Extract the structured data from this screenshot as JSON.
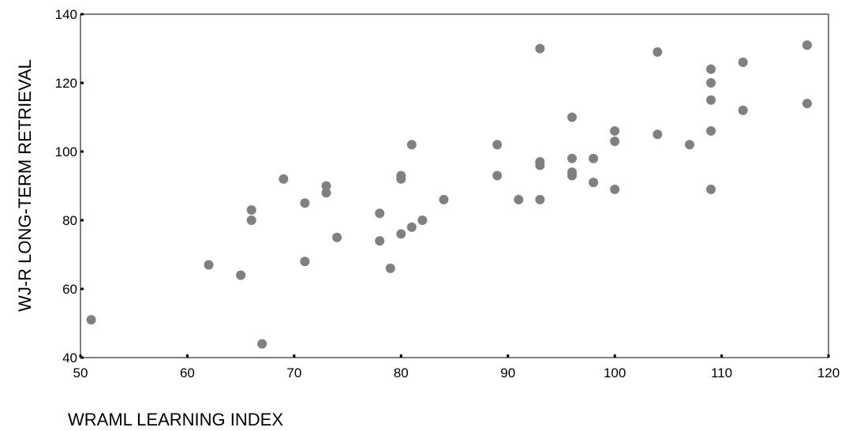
{
  "chart_data": {
    "type": "scatter",
    "title": "",
    "xlabel": "WRAML LEARNING INDEX",
    "ylabel": "WJ-R LONG-TERM RETRIEVAL",
    "xlim": [
      50,
      120
    ],
    "ylim": [
      40,
      140
    ],
    "xticks": [
      50,
      60,
      70,
      80,
      90,
      100,
      110,
      120
    ],
    "yticks": [
      40,
      60,
      80,
      100,
      120,
      140
    ],
    "grid": false,
    "legend": "none",
    "marker_color": "#808080",
    "series": [
      {
        "x": [
          51,
          62,
          65,
          66,
          66,
          67,
          69,
          71,
          71,
          73,
          73,
          74,
          78,
          78,
          79,
          80,
          80,
          80,
          81,
          81,
          82,
          84,
          89,
          89,
          91,
          93,
          93,
          93,
          93,
          96,
          96,
          96,
          96,
          98,
          98,
          100,
          100,
          100,
          104,
          104,
          107,
          109,
          109,
          109,
          109,
          109,
          112,
          112,
          118,
          118
        ],
        "y": [
          51,
          67,
          64,
          83,
          80,
          44,
          92,
          85,
          68,
          90,
          88,
          75,
          82,
          74,
          66,
          76,
          93,
          92,
          102,
          78,
          80,
          86,
          102,
          93,
          86,
          130,
          97,
          96,
          86,
          110,
          98,
          94,
          93,
          98,
          91,
          106,
          103,
          89,
          129,
          105,
          102,
          124,
          120,
          115,
          106,
          89,
          126,
          112,
          131,
          114
        ]
      }
    ]
  }
}
